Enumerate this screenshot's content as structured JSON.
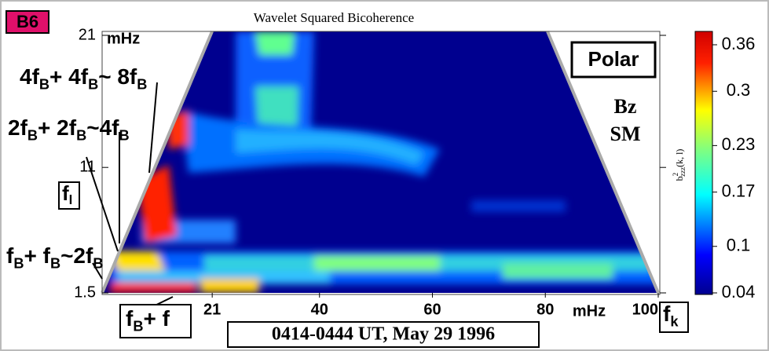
{
  "chart_data": {
    "type": "heatmap",
    "title": "Wavelet Squared Bicoherence",
    "panel": "B6",
    "box_label": "Polar",
    "component": [
      "Bz",
      "SM"
    ],
    "y_unit": "mHz",
    "x_unit": "mHz",
    "yticks": [
      1.5,
      11,
      21
    ],
    "ylim": [
      1.5,
      21
    ],
    "xticks": [
      21,
      40,
      60,
      80,
      100
    ],
    "xlim": [
      1.5,
      100
    ],
    "x_axis_label": [
      "f",
      "k"
    ],
    "y_axis_label": [
      "f",
      "l"
    ],
    "colorbar_label": [
      "b",
      "2",
      "zzz",
      "(k, l)"
    ],
    "colorbar_ticks": [
      0.36,
      0.3,
      0.23,
      0.17,
      0.1,
      0.04
    ],
    "clim": [
      0.04,
      0.36
    ],
    "annotations": [
      [
        "4f",
        "B",
        "+ 4f",
        "B",
        "~ 8f",
        "B"
      ],
      [
        "2f",
        "B",
        "+ 2f",
        "B",
        "~4f",
        "B"
      ],
      [
        "f",
        "B",
        "+ f",
        "B",
        "~2f",
        "B"
      ],
      [
        "f",
        "B",
        "+ f"
      ]
    ],
    "time_range": "0414-0444 UT, May 29  1996"
  }
}
